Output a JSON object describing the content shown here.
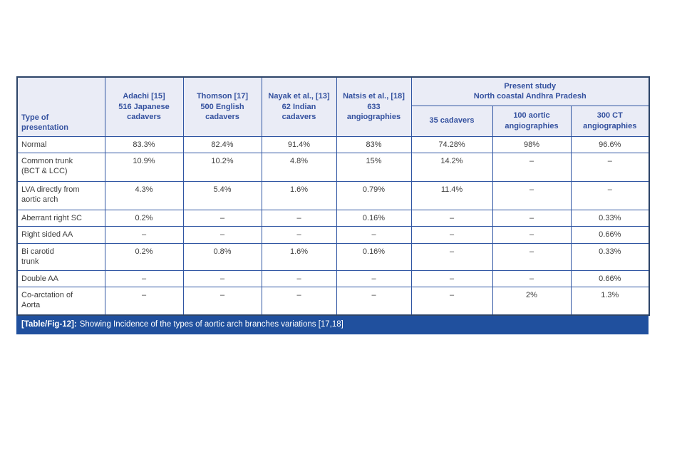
{
  "colors": {
    "header_bg": "#eaecf6",
    "header_text": "#34519f",
    "border_inner": "#2f55a2",
    "border_outer": "#2c4468",
    "body_text": "#3d3d3d",
    "caption_bg": "#20509e",
    "caption_text": "#ffffff"
  },
  "table": {
    "present_study_header": "Present study\nNorth coastal Andhra Pradesh",
    "columns": [
      "Type of\npresentation",
      "Adachi [15]\n516 Japanese\ncadavers",
      "Thomson [17]\n500 English\ncadavers",
      "Nayak et al., [13]\n62 Indian\ncadavers",
      "Natsis et al., [18]\n633\nangiographies",
      "35 cadavers",
      "100 aortic\nangiographies",
      "300 CT\nangiographies"
    ],
    "rows": [
      {
        "type": "Normal",
        "values": [
          "83.3%",
          "82.4%",
          "91.4%",
          "83%",
          "74.28%",
          "98%",
          "96.6%"
        ]
      },
      {
        "type": "Common trunk\n(BCT & LCC)",
        "values": [
          "10.9%",
          "10.2%",
          "4.8%",
          "15%",
          "14.2%",
          "–",
          "–"
        ]
      },
      {
        "type": "LVA directly from\naortic arch",
        "values": [
          "4.3%",
          "5.4%",
          "1.6%",
          "0.79%",
          "11.4%",
          "–",
          "–"
        ]
      },
      {
        "type": "Aberrant right SC",
        "values": [
          "0.2%",
          "–",
          "–",
          "0.16%",
          "–",
          "–",
          "0.33%"
        ]
      },
      {
        "type": "Right sided AA",
        "values": [
          "–",
          "–",
          "–",
          "–",
          "–",
          "–",
          "0.66%"
        ]
      },
      {
        "type": "Bi carotid\ntrunk",
        "values": [
          "0.2%",
          "0.8%",
          "1.6%",
          "0.16%",
          "–",
          "–",
          "0.33%"
        ]
      },
      {
        "type": "Double AA",
        "values": [
          "–",
          "–",
          "–",
          "–",
          "–",
          "–",
          "0.66%"
        ]
      },
      {
        "type": "Co-arctation of\nAorta",
        "values": [
          "–",
          "–",
          "–",
          "–",
          "–",
          "2%",
          "1.3%"
        ]
      }
    ],
    "caption": {
      "label": "[Table/Fig-12]:",
      "text": "Showing Incidence of the types of aortic arch branches variations [17,18]"
    }
  }
}
